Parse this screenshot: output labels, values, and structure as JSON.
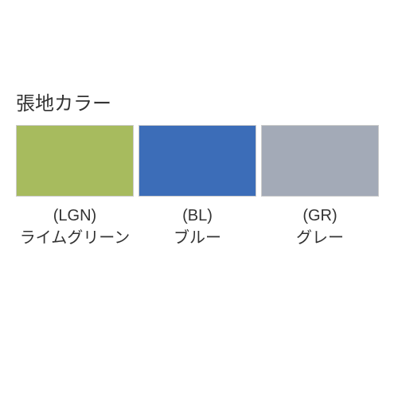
{
  "title": "張地カラー",
  "swatches": [
    {
      "code": "(LGN)",
      "name": "ライムグリーン",
      "color": "#a7bb5e"
    },
    {
      "code": "(BL)",
      "name": "ブルー",
      "color": "#3c6db8"
    },
    {
      "code": "(GR)",
      "name": "グレー",
      "color": "#a3aab7"
    }
  ],
  "layout": {
    "swatch_width": 148,
    "swatch_height": 90,
    "gap": 6,
    "title_fontsize": 24,
    "label_fontsize": 20,
    "background": "#ffffff",
    "text_color": "#333333",
    "border_color": "#cccccc"
  }
}
